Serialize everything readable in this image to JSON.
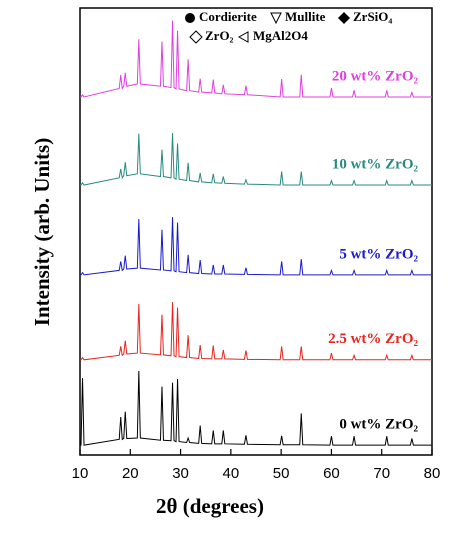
{
  "chart_data": {
    "type": "line",
    "xlabel": "2θ (degrees)",
    "ylabel": "Intensity (arb. Units)",
    "legend": [
      "Cordierite",
      "Mullite",
      "ZrSiO₄",
      "ZrO₂",
      "MgAl2O4"
    ],
    "xlim": [
      10,
      80
    ],
    "xticks": [
      10,
      20,
      30,
      40,
      50,
      60,
      70,
      80
    ],
    "ylim": [
      0,
      100
    ],
    "x": [
      10,
      10.2,
      10.5,
      10.8,
      17.8,
      18.1,
      18.4,
      18.7,
      19.0,
      19.3,
      21.4,
      21.7,
      22.0,
      26.0,
      26.3,
      26.6,
      28.1,
      28.4,
      28.7,
      29.1,
      29.4,
      29.7,
      31.2,
      31.5,
      31.8,
      33.6,
      33.9,
      34.2,
      36.2,
      36.5,
      36.8,
      38.2,
      38.5,
      38.8,
      42.7,
      43.0,
      43.3,
      49.8,
      50.1,
      50.4,
      53.7,
      54.0,
      54.3,
      59.7,
      60.0,
      60.3,
      64.2,
      64.5,
      64.8,
      70.7,
      71.0,
      71.3,
      75.7,
      76.0,
      76.3,
      80
    ],
    "series": [
      {
        "name": "0 wt% ZrO₂",
        "color": "#000000",
        "values": [
          2.2,
          2.2,
          17.2,
          2.2,
          3.5,
          8.5,
          3.5,
          3.7,
          9.7,
          3.7,
          3.8,
          18.8,
          3.8,
          3.3,
          15.3,
          3.3,
          3.2,
          16.2,
          3.2,
          3.0,
          17.0,
          3.0,
          2.8,
          3.8,
          2.8,
          2.6,
          6.6,
          2.6,
          2.5,
          5.5,
          2.5,
          2.5,
          5.5,
          2.5,
          2.4,
          4.4,
          2.4,
          2.3,
          4.3,
          2.3,
          2.3,
          9.3,
          2.3,
          2.2,
          4.2,
          2.2,
          2.2,
          4.2,
          2.2,
          2.2,
          4.2,
          2.2,
          2.2,
          3.7,
          2.2,
          2.2
        ]
      },
      {
        "name": "2.5 wt% ZrO₂",
        "color": "#e8241e",
        "values": [
          21.3,
          21.3,
          21.8,
          21.3,
          22.3,
          24.3,
          22.3,
          22.6,
          25.6,
          22.6,
          22.8,
          33.8,
          22.8,
          22.4,
          31.4,
          22.4,
          22.2,
          34.2,
          22.2,
          22.0,
          33.0,
          22.0,
          21.8,
          26.8,
          21.8,
          21.6,
          24.6,
          21.6,
          21.5,
          24.5,
          21.5,
          21.5,
          23.5,
          21.5,
          21.4,
          23.4,
          21.4,
          21.3,
          24.3,
          21.3,
          21.3,
          24.3,
          21.3,
          21.3,
          22.8,
          21.3,
          21.3,
          22.3,
          21.3,
          21.3,
          22.3,
          21.3,
          21.3,
          22.3,
          21.3,
          21.3
        ]
      },
      {
        "name": "5 wt% ZrO₂",
        "color": "#1a1acc",
        "values": [
          40.3,
          40.3,
          40.8,
          40.3,
          41.3,
          43.3,
          41.3,
          41.6,
          44.6,
          41.6,
          41.8,
          52.8,
          41.8,
          41.4,
          50.4,
          41.4,
          41.2,
          53.2,
          41.2,
          41.0,
          52.0,
          41.0,
          40.8,
          44.8,
          40.8,
          40.6,
          43.6,
          40.6,
          40.5,
          42.5,
          40.5,
          40.5,
          42.5,
          40.5,
          40.4,
          41.9,
          40.4,
          40.3,
          43.3,
          40.3,
          40.3,
          43.8,
          40.3,
          40.3,
          41.3,
          40.3,
          40.3,
          41.3,
          40.3,
          40.3,
          41.3,
          40.3,
          40.3,
          41.3,
          40.3,
          40.3
        ]
      },
      {
        "name": "10 wt% ZrO₂",
        "color": "#2a8a80",
        "values": [
          60.4,
          60.4,
          60.9,
          60.4,
          62.0,
          64.0,
          62.0,
          62.5,
          65.5,
          62.5,
          62.9,
          71.9,
          62.9,
          62.3,
          68.3,
          62.3,
          62.0,
          72.0,
          62.0,
          61.7,
          69.7,
          61.7,
          61.4,
          65.4,
          61.4,
          61.1,
          63.1,
          61.1,
          60.9,
          62.9,
          60.9,
          60.8,
          62.3,
          60.8,
          60.6,
          61.6,
          60.6,
          60.4,
          63.4,
          60.4,
          60.4,
          63.4,
          60.4,
          60.4,
          61.4,
          60.4,
          60.4,
          61.4,
          60.4,
          60.4,
          61.4,
          60.4,
          60.4,
          61.4,
          60.4,
          60.4
        ]
      },
      {
        "name": "20 wt% ZrO₂",
        "color": "#e040e0",
        "values": [
          80.1,
          80.1,
          80.6,
          80.1,
          82.0,
          85.0,
          82.0,
          82.5,
          85.5,
          82.5,
          83.0,
          93.0,
          83.0,
          82.5,
          92.5,
          82.5,
          82.2,
          97.2,
          82.2,
          81.9,
          94.9,
          81.9,
          81.5,
          88.5,
          81.5,
          81.2,
          84.2,
          81.2,
          81.0,
          84.0,
          81.0,
          80.8,
          82.8,
          80.8,
          80.6,
          82.6,
          80.6,
          80.1,
          84.1,
          80.1,
          80.1,
          85.1,
          80.1,
          80.1,
          82.1,
          80.1,
          80.1,
          81.6,
          80.1,
          80.1,
          81.6,
          80.1,
          80.1,
          81.1,
          80.1,
          80.1
        ]
      }
    ]
  }
}
